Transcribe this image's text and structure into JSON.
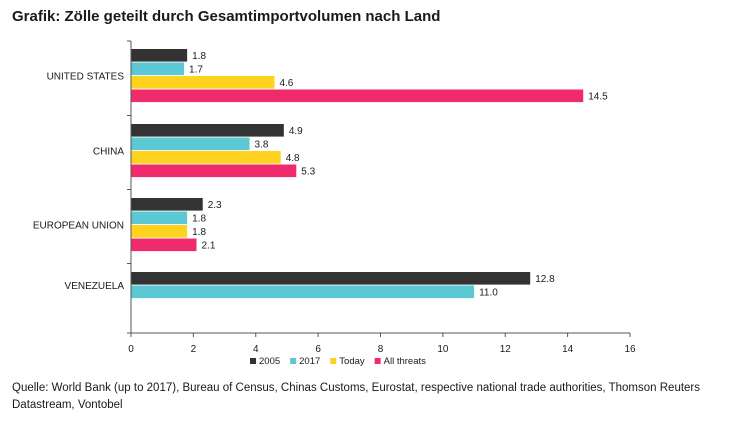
{
  "title": "Grafik: Zölle geteilt durch Gesamtimportvolumen nach Land",
  "source": "Quelle: World Bank (up to 2017), Bureau of Census, Chinas Customs, Eurostat, respective national trade authorities, Thomson Reuters Datastream, Vontobel",
  "chart_data": {
    "type": "bar",
    "orientation": "horizontal",
    "categories": [
      "UNITED STATES",
      "CHINA",
      "EUROPEAN UNION",
      "VENEZUELA"
    ],
    "series": [
      {
        "name": "2005",
        "color": "#333333",
        "values": [
          1.8,
          4.9,
          2.3,
          12.8
        ],
        "labels": [
          "1.8",
          "4.9",
          "2.3",
          "12.8"
        ]
      },
      {
        "name": "2017",
        "color": "#5bc8d3",
        "values": [
          1.7,
          3.8,
          1.8,
          11.0
        ],
        "labels": [
          "1.7",
          "3.8",
          "1.8",
          "11.0"
        ]
      },
      {
        "name": "Today",
        "color": "#ffd21f",
        "values": [
          4.6,
          4.8,
          1.8,
          null
        ],
        "labels": [
          "4.6",
          "4.8",
          "1.8",
          ""
        ]
      },
      {
        "name": "All threats",
        "color": "#f02b6b",
        "values": [
          14.5,
          5.3,
          2.1,
          null
        ],
        "labels": [
          "14.5",
          "5.3",
          "2.1",
          ""
        ]
      }
    ],
    "xlim": [
      0,
      16
    ],
    "xticks": [
      0,
      2,
      4,
      6,
      8,
      10,
      12,
      14,
      16
    ],
    "xtick_labels": [
      "0",
      "2",
      "4",
      "6",
      "8",
      "10",
      "12",
      "14",
      "16"
    ],
    "legend_position": "bottom-center",
    "grid": false
  }
}
